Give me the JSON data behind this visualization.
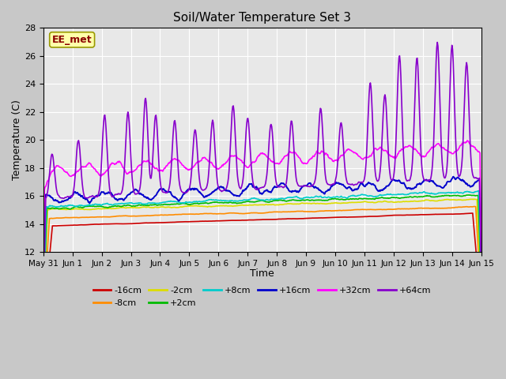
{
  "title": "Soil/Water Temperature Set 3",
  "xlabel": "Time",
  "ylabel": "Temperature (C)",
  "ylim": [
    12,
    28
  ],
  "yticks": [
    12,
    14,
    16,
    18,
    20,
    22,
    24,
    26,
    28
  ],
  "plot_bg": "#e8e8e8",
  "watermark": "EE_met",
  "series": {
    "-16cm": {
      "color": "#cc0000",
      "lw": 1.2
    },
    "-8cm": {
      "color": "#ff8c00",
      "lw": 1.2
    },
    "-2cm": {
      "color": "#dddd00",
      "lw": 1.2
    },
    "+2cm": {
      "color": "#00bb00",
      "lw": 1.2
    },
    "+8cm": {
      "color": "#00cccc",
      "lw": 1.2
    },
    "+16cm": {
      "color": "#0000cc",
      "lw": 1.4
    },
    "+32cm": {
      "color": "#ff00ff",
      "lw": 1.2
    },
    "+64cm": {
      "color": "#8800cc",
      "lw": 1.2
    }
  },
  "legend_order": [
    "-16cm",
    "-8cm",
    "-2cm",
    "+2cm",
    "+8cm",
    "+16cm",
    "+32cm",
    "+64cm"
  ],
  "tick_labels": [
    "May 31",
    "Jun 1",
    "Jun 2",
    "Jun 3",
    "Jun 4",
    "Jun 5",
    "Jun 6",
    "Jun 7",
    "Jun 8",
    "Jun 9",
    "Jun 10",
    "Jun 11",
    "Jun 12",
    "Jun 13",
    "Jun 14",
    "Jun 15"
  ]
}
